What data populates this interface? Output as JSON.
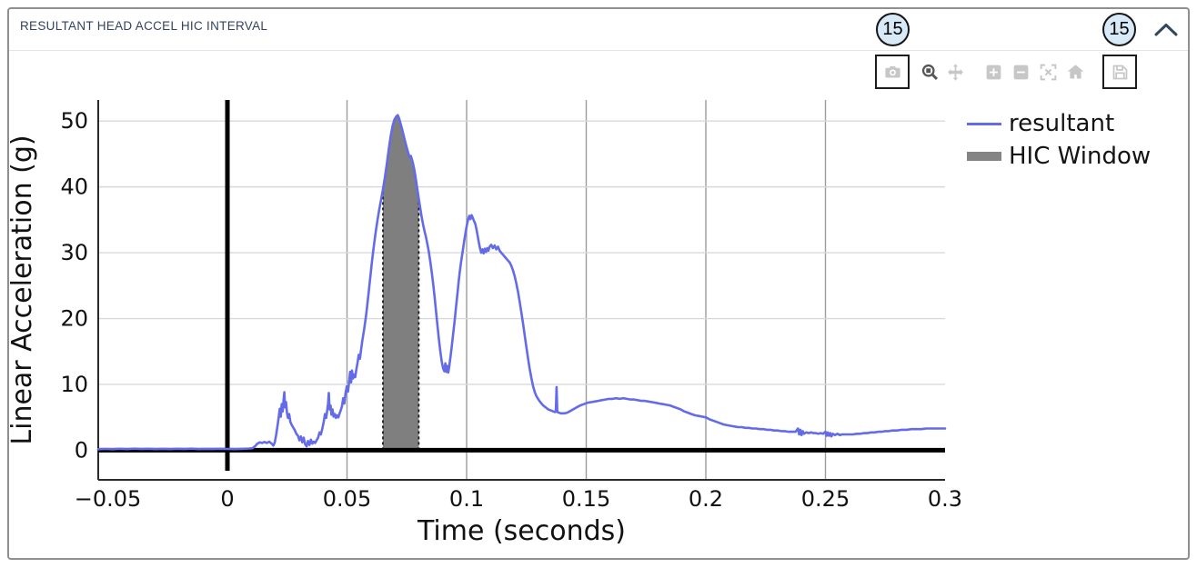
{
  "panel": {
    "title": "RESULTANT HEAD ACCEL HIC INTERVAL"
  },
  "annotations": {
    "left_badge": "15",
    "right_badge": "15"
  },
  "modebar": {
    "buttons": [
      {
        "name": "camera",
        "highlighted": true,
        "active": false
      },
      {
        "name": "zoom",
        "highlighted": false,
        "active": true
      },
      {
        "name": "pan",
        "highlighted": false,
        "active": false
      },
      {
        "name": "zoom-in",
        "highlighted": false,
        "active": false
      },
      {
        "name": "zoom-out",
        "highlighted": false,
        "active": false
      },
      {
        "name": "autoscale",
        "highlighted": false,
        "active": false
      },
      {
        "name": "home",
        "highlighted": false,
        "active": false
      },
      {
        "name": "save",
        "highlighted": true,
        "active": false
      }
    ]
  },
  "chart_data": {
    "type": "line",
    "title": "",
    "xlabel": "Time (seconds)",
    "ylabel": "Linear Acceleration (g)",
    "xlim": [
      -0.054,
      0.3
    ],
    "ylim": [
      -4.5,
      53.2
    ],
    "xticks": [
      -0.05,
      0,
      0.05,
      0.1,
      0.15,
      0.2,
      0.25,
      0.3
    ],
    "xtick_labels": [
      "−0.05",
      "0",
      "0.05",
      "0.1",
      "0.15",
      "0.2",
      "0.25",
      "0.3"
    ],
    "yticks": [
      0,
      10,
      20,
      30,
      40,
      50
    ],
    "ytick_labels": [
      "0",
      "10",
      "20",
      "30",
      "40",
      "50"
    ],
    "grid": true,
    "legend_position": "outside-top-right",
    "colors": {
      "line": "#636be8",
      "hic_fill": "#7f7f7f",
      "hic_edge": "#161616",
      "zero_line": "#000000",
      "vgrid": "#9c9c9c",
      "hgrid": "#d9d9d9",
      "spine": "#2a2a2a"
    },
    "hic_window": {
      "name": "HIC Window",
      "t_start": 0.065,
      "t_end": 0.08
    },
    "series": [
      {
        "name": "resultant",
        "points_tg": [
          -0.054,
          0.15,
          -0.051,
          0.2,
          -0.048,
          0.15,
          -0.045,
          0.22,
          -0.042,
          0.17,
          -0.039,
          0.23,
          -0.036,
          0.18,
          -0.033,
          0.22,
          -0.03,
          0.16,
          -0.027,
          0.21,
          -0.024,
          0.17,
          -0.021,
          0.22,
          -0.018,
          0.18,
          -0.015,
          0.23,
          -0.012,
          0.17,
          -0.009,
          0.21,
          -0.006,
          0.18,
          -0.003,
          0.22,
          0,
          0.2,
          0.003,
          0.16,
          0.006,
          0.21,
          0.009,
          0.26,
          0.0105,
          0.3,
          0.0115,
          0.6,
          0.0125,
          1,
          0.0135,
          1.2,
          0.0145,
          1.1,
          0.0155,
          1.25,
          0.0165,
          1.1,
          0.0175,
          1.3,
          0.0185,
          1,
          0.0192,
          0.7,
          0.0198,
          1.2,
          0.0204,
          2.4,
          0.021,
          3.8,
          0.0215,
          5.2,
          0.0219,
          6.3,
          0.0223,
          5.1,
          0.0227,
          7,
          0.0231,
          5.9,
          0.0235,
          7.7,
          0.0238,
          8.8,
          0.0241,
          6.5,
          0.0245,
          7.3,
          0.0249,
          5.7,
          0.0253,
          4.9,
          0.0258,
          5.5,
          0.0263,
          4.3,
          0.0268,
          3.9,
          0.0274,
          3.5,
          0.0281,
          3.1,
          0.0288,
          2.5,
          0.0295,
          2.2,
          0.0301,
          1.5,
          0.0307,
          2.1,
          0.0313,
          1.2,
          0.0319,
          1.9,
          0.0325,
          0.9,
          0.0331,
          0.6,
          0.0337,
          1.4,
          0.0343,
          0.8,
          0.0349,
          1.6,
          0.0355,
          1,
          0.0361,
          1.3,
          0.0367,
          1.1,
          0.0373,
          1.5,
          0.0379,
          1.9,
          0.0385,
          2.7,
          0.0391,
          2.4,
          0.0397,
          3.3,
          0.0403,
          4.4,
          0.0408,
          5.5,
          0.0413,
          4.9,
          0.0417,
          6,
          0.0421,
          7.1,
          0.0424,
          8.7,
          0.0427,
          6.2,
          0.0431,
          6.8,
          0.0435,
          5.4,
          0.0439,
          6.2,
          0.0444,
          5.1,
          0.0449,
          5.5,
          0.0454,
          4.9,
          0.0459,
          5.3,
          0.0464,
          5,
          0.0469,
          5.6,
          0.0474,
          6.1,
          0.0479,
          6.7,
          0.0484,
          7.9,
          0.0489,
          7.1,
          0.0494,
          8.7,
          0.0499,
          9.7,
          0.0504,
          8.9,
          0.0509,
          10.5,
          0.0513,
          11.9,
          0.0517,
          10.3,
          0.0521,
          12.1,
          0.0525,
          10.9,
          0.0529,
          11.5,
          0.0534,
          11.1,
          0.0539,
          12.3,
          0.0544,
          13.3,
          0.0549,
          14.5,
          0.0554,
          13.9,
          0.0559,
          15.3,
          0.0564,
          16.6,
          0.0572,
          18.4,
          0.058,
          20.6,
          0.0588,
          23.2,
          0.0596,
          25.9,
          0.0604,
          28.6,
          0.0612,
          31,
          0.062,
          33.2,
          0.0628,
          35.1,
          0.0635,
          36.6,
          0.0642,
          38,
          0.065,
          39.6,
          0.0658,
          41.4,
          0.0666,
          43.4,
          0.0674,
          45.6,
          0.0682,
          47.6,
          0.069,
          49.2,
          0.0698,
          50.2,
          0.0706,
          50.7,
          0.0712,
          50.9,
          0.0718,
          50.4,
          0.0724,
          49.6,
          0.073,
          48.8,
          0.0736,
          47.9,
          0.0742,
          47,
          0.0748,
          46.2,
          0.0754,
          45.4,
          0.0759,
          44.8,
          0.0763,
          44.5,
          0.0767,
          44.7,
          0.0771,
          44.2,
          0.0775,
          43.7,
          0.078,
          42.8,
          0.0785,
          41.8,
          0.079,
          40.6,
          0.0795,
          39.4,
          0.08,
          38.2,
          0.0806,
          36.8,
          0.0812,
          35.4,
          0.0818,
          34.3,
          0.0824,
          33.3,
          0.083,
          32.4,
          0.0836,
          31.3,
          0.0842,
          30.1,
          0.0848,
          28.7,
          0.0854,
          27.1,
          0.086,
          25.3,
          0.0866,
          23.3,
          0.0872,
          21.2,
          0.0878,
          19,
          0.0884,
          16.9,
          0.089,
          15,
          0.0896,
          13.4,
          0.0902,
          12.4,
          0.0907,
          12,
          0.0911,
          13.2,
          0.0915,
          11.9,
          0.0919,
          12.8,
          0.0923,
          11.8,
          0.0927,
          12.6,
          0.0931,
          13.8,
          0.0936,
          15.2,
          0.0941,
          16.8,
          0.0946,
          18.4,
          0.0951,
          20,
          0.0956,
          21.8,
          0.0961,
          23.6,
          0.0966,
          25.4,
          0.0971,
          27,
          0.0976,
          28.4,
          0.0981,
          29.6,
          0.0986,
          30.8,
          0.0991,
          32,
          0.0996,
          33.2,
          0.1001,
          34.2,
          0.1006,
          35,
          0.1011,
          35.6,
          0.1016,
          35.1,
          0.1021,
          35.7,
          0.1026,
          35.3,
          0.1031,
          34.8,
          0.1036,
          34.4,
          0.1041,
          33.6,
          0.1046,
          32.6,
          0.1051,
          31.6,
          0.1056,
          30.7,
          0.1061,
          30,
          0.1066,
          30.5,
          0.1071,
          29.9,
          0.1076,
          30.6,
          0.1081,
          30.1,
          0.1086,
          30.7,
          0.1091,
          30.3,
          0.1096,
          30.9,
          0.1103,
          31.2,
          0.111,
          30.7,
          0.1117,
          31.1,
          0.1124,
          30.5,
          0.1131,
          30.9,
          0.1138,
          30.3,
          0.1145,
          30,
          0.1152,
          29.7,
          0.1159,
          29.4,
          0.1166,
          29.1,
          0.1173,
          28.8,
          0.118,
          28.5,
          0.1187,
          28,
          0.1194,
          27.3,
          0.1201,
          26.4,
          0.1208,
          25.3,
          0.1215,
          24,
          0.1222,
          22.5,
          0.1229,
          20.9,
          0.1236,
          19.2,
          0.1243,
          17.4,
          0.125,
          15.6,
          0.1257,
          13.9,
          0.1264,
          12.3,
          0.1271,
          10.9,
          0.1278,
          9.7,
          0.1285,
          8.8,
          0.1292,
          8.2,
          0.1299,
          7.8,
          0.1306,
          7.4,
          0.1313,
          7.1,
          0.132,
          6.8,
          0.1327,
          6.6,
          0.1334,
          6.4,
          0.1341,
          6.2,
          0.1348,
          6.1,
          0.1355,
          6,
          0.1362,
          5.9,
          0.1369,
          5.8,
          0.1373,
          5.9,
          0.1376,
          9.6,
          0.1379,
          5.8,
          0.1386,
          5.7,
          0.1393,
          5.6,
          0.14,
          5.6,
          0.141,
          5.6,
          0.142,
          5.7,
          0.143,
          5.9,
          0.144,
          6.1,
          0.145,
          6.3,
          0.146,
          6.5,
          0.1475,
          6.8,
          0.149,
          7,
          0.1505,
          7.2,
          0.152,
          7.3,
          0.1535,
          7.4,
          0.155,
          7.5,
          0.1565,
          7.6,
          0.158,
          7.7,
          0.1595,
          7.8,
          0.161,
          7.8,
          0.1625,
          7.9,
          0.164,
          7.8,
          0.1655,
          7.9,
          0.167,
          7.8,
          0.1685,
          7.7,
          0.17,
          7.7,
          0.1715,
          7.6,
          0.173,
          7.5,
          0.1745,
          7.5,
          0.176,
          7.4,
          0.1775,
          7.3,
          0.179,
          7.2,
          0.1805,
          7.1,
          0.182,
          7,
          0.1835,
          6.9,
          0.185,
          6.8,
          0.1865,
          6.6,
          0.188,
          6.4,
          0.1895,
          6.2,
          0.191,
          5.9,
          0.1925,
          5.7,
          0.194,
          5.5,
          0.1955,
          5.3,
          0.197,
          5.2,
          0.1985,
          5.1,
          0.2,
          5,
          0.2015,
          4.7,
          0.203,
          4.5,
          0.2045,
          4.3,
          0.206,
          4.1,
          0.2075,
          3.9,
          0.209,
          3.8,
          0.2105,
          3.7,
          0.212,
          3.6,
          0.2135,
          3.5,
          0.215,
          3.5,
          0.2165,
          3.4,
          0.218,
          3.4,
          0.2195,
          3.3,
          0.221,
          3.3,
          0.2225,
          3.2,
          0.224,
          3.2,
          0.2255,
          3.1,
          0.227,
          3.1,
          0.2285,
          3,
          0.23,
          3,
          0.2315,
          2.9,
          0.233,
          2.9,
          0.2345,
          2.8,
          0.236,
          2.8,
          0.2375,
          2.8,
          0.2385,
          3.3,
          0.239,
          2.4,
          0.2395,
          3.1,
          0.24,
          2.3,
          0.2405,
          2.9,
          0.241,
          2.5,
          0.242,
          2.7,
          0.243,
          2.6,
          0.244,
          2.7,
          0.245,
          2.6,
          0.246,
          2.6,
          0.247,
          2.5,
          0.248,
          2.6,
          0.249,
          2.5,
          0.25,
          2.8,
          0.2505,
          2.2,
          0.251,
          2.7,
          0.2515,
          2.2,
          0.252,
          2.6,
          0.2525,
          2.1,
          0.253,
          2.5,
          0.254,
          2.3,
          0.255,
          2.5,
          0.256,
          2.3,
          0.257,
          2.4,
          0.2585,
          2.4,
          0.26,
          2.4,
          0.2615,
          2.4,
          0.263,
          2.5,
          0.2645,
          2.5,
          0.266,
          2.6,
          0.2675,
          2.6,
          0.269,
          2.7,
          0.2705,
          2.7,
          0.272,
          2.8,
          0.2735,
          2.8,
          0.275,
          2.9,
          0.2765,
          2.9,
          0.278,
          3,
          0.28,
          3,
          0.282,
          3.1,
          0.284,
          3.1,
          0.286,
          3.2,
          0.288,
          3.2,
          0.29,
          3.2,
          0.292,
          3.3,
          0.294,
          3.3,
          0.296,
          3.3,
          0.298,
          3.3,
          0.3,
          3.3
        ]
      }
    ]
  }
}
